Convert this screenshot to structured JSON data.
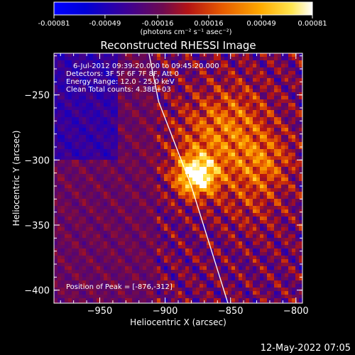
{
  "colorbar": {
    "ticks": [
      -0.00081,
      -0.00049,
      -0.00016,
      0.00016,
      0.00049,
      0.00081
    ],
    "tick_labels": [
      "-0.00081",
      "-0.00049",
      "-0.00016",
      "0.00016",
      "0.00049",
      "0.00081"
    ],
    "units_label": "(photons cm⁻² s⁻¹ asec⁻²)"
  },
  "chart_data": {
    "type": "heatmap",
    "title": "Reconstructed RHESSI Image",
    "xlabel": "Heliocentric X (arcsec)",
    "ylabel": "Heliocentric Y (arcsec)",
    "xlim": [
      -985,
      -795
    ],
    "ylim": [
      -410,
      -218
    ],
    "xticks": [
      -950,
      -900,
      -850,
      -800
    ],
    "yticks": [
      -250,
      -300,
      -350,
      -400
    ],
    "xtick_labels": [
      "−950",
      "−900",
      "−850",
      "−800"
    ],
    "ytick_labels": [
      "−250",
      "−300",
      "−350",
      "−400"
    ],
    "value_range": [
      -0.00081,
      0.00081
    ],
    "colormap": "rhessi_3",
    "peak": {
      "x": -876,
      "y": -312
    },
    "limb_line": {
      "points": [
        [
          -915,
          -205
        ],
        [
          -905,
          -255
        ],
        [
          -880,
          -320
        ],
        [
          -852,
          -410
        ]
      ]
    },
    "annotations": [
      "6-Jul-2012 09:39:20.000 to 09:45:20.000",
      "Detectors: 3F 5F 6F 7F 8F, Att 0",
      "Energy Range: 12.0 - 25.0 keV",
      "Clean    Total counts: 4.38E+03",
      "Position of Peak = [-876,-312]"
    ]
  },
  "footer_timestamp": "12-May-2022 07:05",
  "colors": {
    "background": "#000000",
    "text": "#ffffff",
    "limb": "#ffffff"
  }
}
